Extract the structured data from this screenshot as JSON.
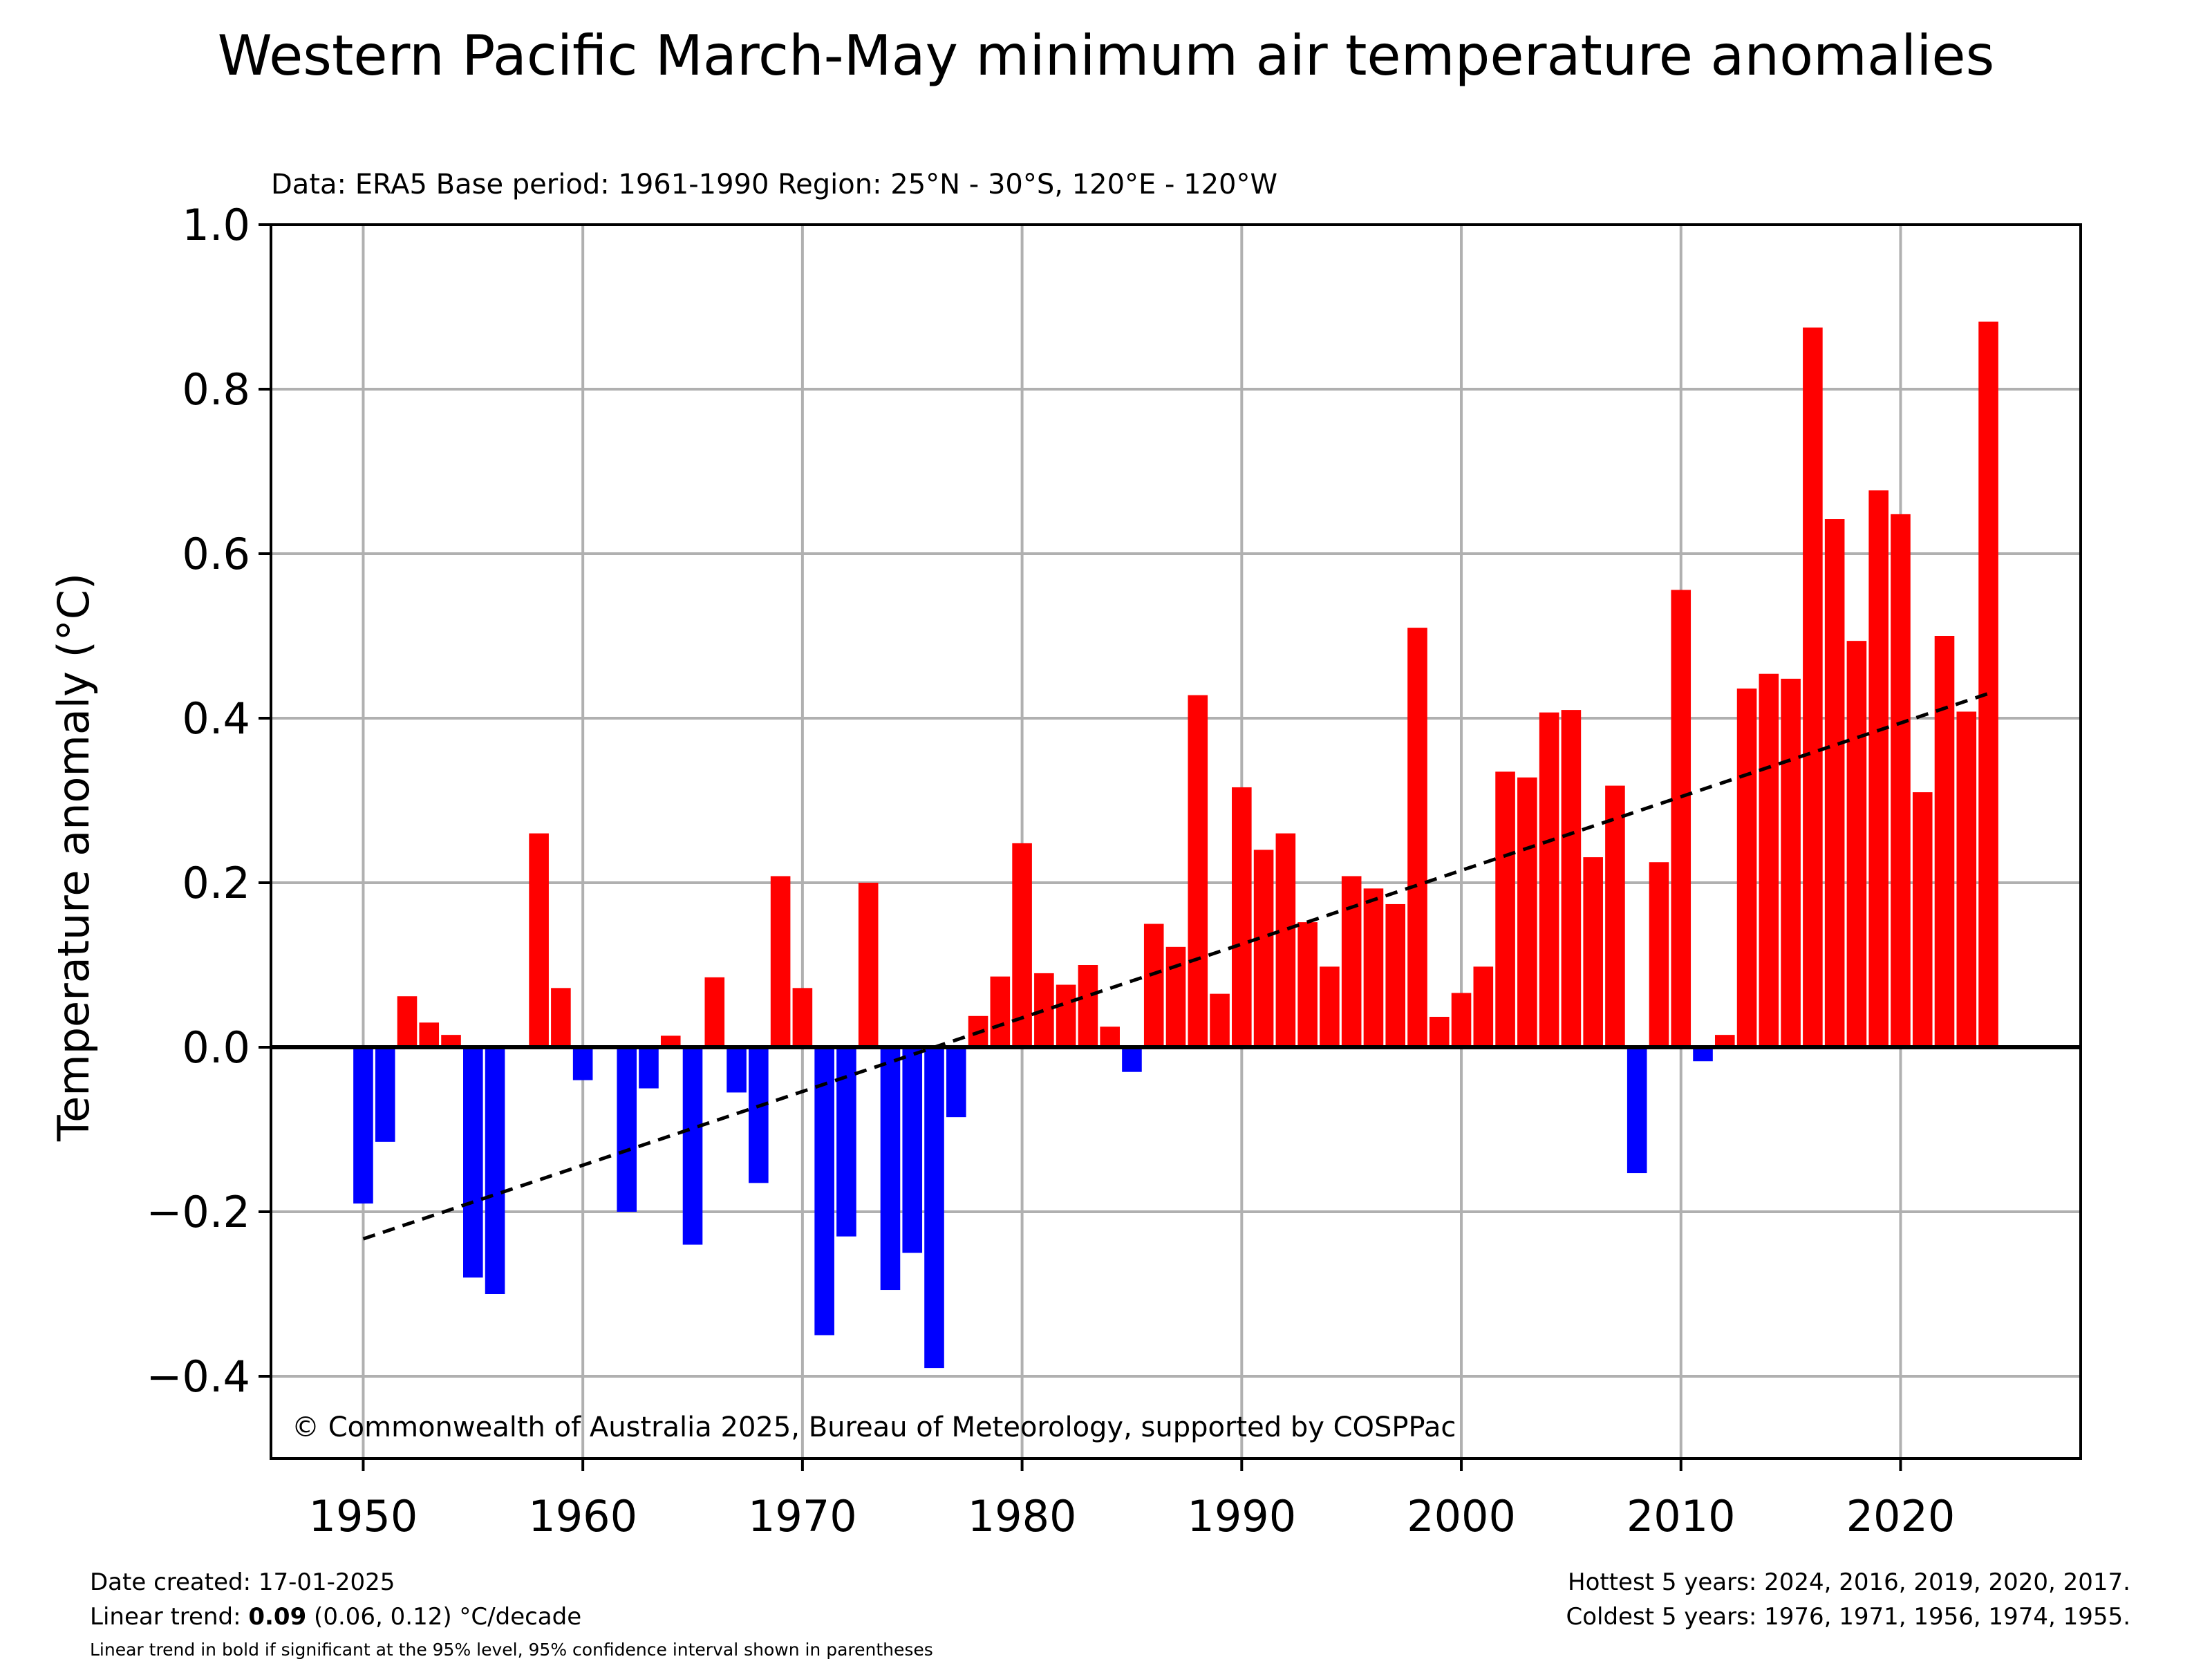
{
  "chart_data": {
    "type": "bar",
    "title": "Western Pacific March-May minimum air temperature anomalies",
    "subtitle": "Data: ERA5  Base period: 1961-1990  Region: 25°N - 30°S, 120°E - 120°W",
    "ylabel": "Temperature anomaly (°C)",
    "xlabel": "",
    "xlim": [
      1945.8,
      2028.2
    ],
    "ylim": [
      -0.5,
      1.0
    ],
    "x_ticks": [
      1950,
      1960,
      1970,
      1980,
      1990,
      2000,
      2010,
      2020
    ],
    "y_ticks": [
      -0.4,
      -0.2,
      0.0,
      0.2,
      0.4,
      0.6,
      0.8,
      1.0
    ],
    "y_tick_labels": [
      "−0.4",
      "−0.2",
      "0.0",
      "0.2",
      "0.4",
      "0.6",
      "0.8",
      "1.0"
    ],
    "grid": true,
    "colors": {
      "positive": "#ff0000",
      "negative": "#0000ff",
      "trend": "#000000",
      "grid": "#b0b0b0"
    },
    "years": [
      1950,
      1951,
      1952,
      1953,
      1954,
      1955,
      1956,
      1957,
      1958,
      1959,
      1960,
      1961,
      1962,
      1963,
      1964,
      1965,
      1966,
      1967,
      1968,
      1969,
      1970,
      1971,
      1972,
      1973,
      1974,
      1975,
      1976,
      1977,
      1978,
      1979,
      1980,
      1981,
      1982,
      1983,
      1984,
      1985,
      1986,
      1987,
      1988,
      1989,
      1990,
      1991,
      1992,
      1993,
      1994,
      1995,
      1996,
      1997,
      1998,
      1999,
      2000,
      2001,
      2002,
      2003,
      2004,
      2005,
      2006,
      2007,
      2008,
      2009,
      2010,
      2011,
      2012,
      2013,
      2014,
      2015,
      2016,
      2017,
      2018,
      2019,
      2020,
      2021,
      2022,
      2023,
      2024
    ],
    "values": [
      -0.19,
      -0.115,
      0.062,
      0.03,
      0.015,
      -0.28,
      -0.3,
      0.0,
      0.26,
      0.072,
      -0.04,
      0.0,
      -0.2,
      -0.05,
      0.014,
      -0.24,
      0.085,
      -0.055,
      -0.165,
      0.208,
      0.072,
      -0.35,
      -0.23,
      0.2,
      -0.295,
      -0.25,
      -0.39,
      -0.085,
      0.038,
      0.086,
      0.248,
      0.09,
      0.076,
      0.1,
      0.025,
      -0.03,
      0.15,
      0.122,
      0.428,
      0.065,
      0.316,
      0.24,
      0.26,
      0.152,
      0.098,
      0.208,
      0.193,
      0.174,
      0.51,
      0.037,
      0.066,
      0.098,
      0.335,
      0.328,
      0.407,
      0.41,
      0.231,
      0.318,
      -0.153,
      0.225,
      0.556,
      -0.017,
      0.015,
      0.436,
      0.454,
      0.448,
      0.875,
      0.642,
      0.494,
      0.677,
      0.648,
      0.31,
      0.5,
      0.408,
      0.882
    ],
    "trend": {
      "start": {
        "x": 1950,
        "y": -0.233
      },
      "end": {
        "x": 2024,
        "y": 0.43
      }
    }
  },
  "credit": "© Commonwealth of Australia 2025, Bureau of Meteorology, supported by COSPPac",
  "footer": {
    "date_created": "Date created: 17-01-2025",
    "trend_prefix": "Linear trend: ",
    "trend_value": "0.09",
    "trend_suffix": " (0.06, 0.12) °C/decade",
    "trend_note": "Linear trend in bold if significant at the 95% level, 95% confidence interval shown in parentheses",
    "hottest": "Hottest 5 years: 2024, 2016, 2019, 2020, 2017.",
    "coldest": "Coldest 5 years: 1976, 1971, 1956, 1974, 1955."
  }
}
